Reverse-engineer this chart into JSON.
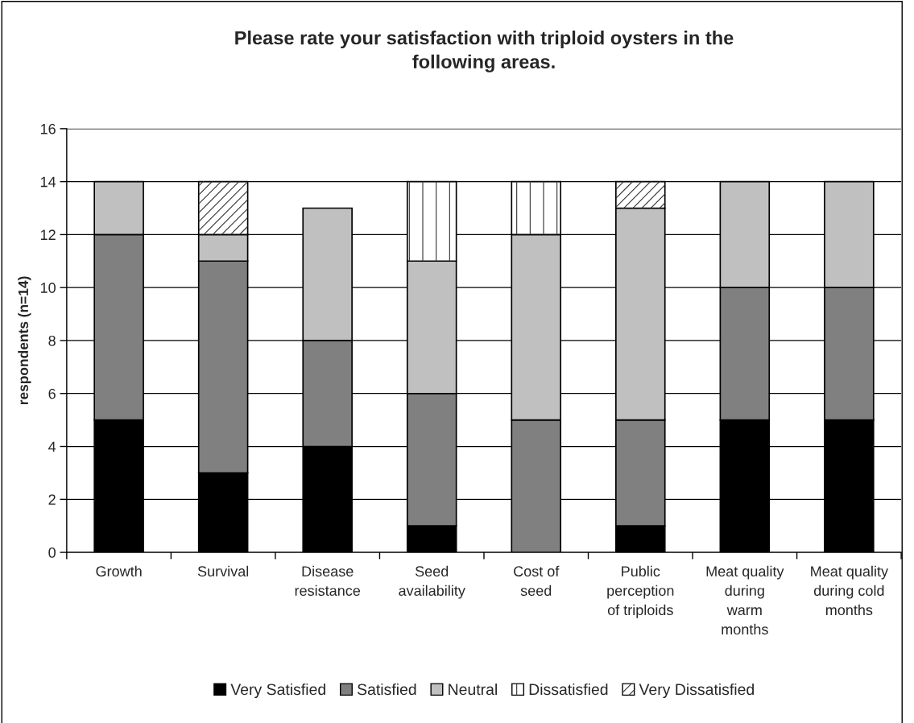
{
  "chart_data": {
    "type": "bar",
    "stacked": true,
    "title": "Please rate your satisfaction with triploid oysters in the\nfollowing areas.",
    "ylabel": "respondents (n=14)",
    "categories": [
      "Growth",
      "Survival",
      "Disease\nresistance",
      "Seed\navailability",
      "Cost of\nseed",
      "Public\nperception\nof triploids",
      "Meat quality\nduring\nwarm\nmonths",
      "Meat quality\nduring cold\nmonths"
    ],
    "series": [
      {
        "name": "Very Satisfied",
        "color": "#000000",
        "values": [
          5,
          3,
          4,
          1,
          0,
          1,
          5,
          5
        ]
      },
      {
        "name": "Satisfied",
        "color": "#808080",
        "values": [
          7,
          8,
          4,
          5,
          5,
          4,
          5,
          5
        ]
      },
      {
        "name": "Neutral",
        "color": "#c0c0c0",
        "values": [
          2,
          1,
          5,
          5,
          7,
          8,
          4,
          4
        ]
      },
      {
        "name": "Dissatisfied",
        "color": "#ffffff",
        "values": [
          0,
          0,
          0,
          3,
          2,
          0,
          0,
          0
        ]
      },
      {
        "name": "Very Dissatisfied",
        "color": "#ffffff",
        "values": [
          0,
          2,
          0,
          0,
          0,
          1,
          0,
          0
        ]
      }
    ],
    "ylim": [
      0,
      16
    ],
    "yticks": [
      0,
      2,
      4,
      6,
      8,
      10,
      12,
      14,
      16
    ],
    "grid": "y",
    "legend": "bottom"
  }
}
